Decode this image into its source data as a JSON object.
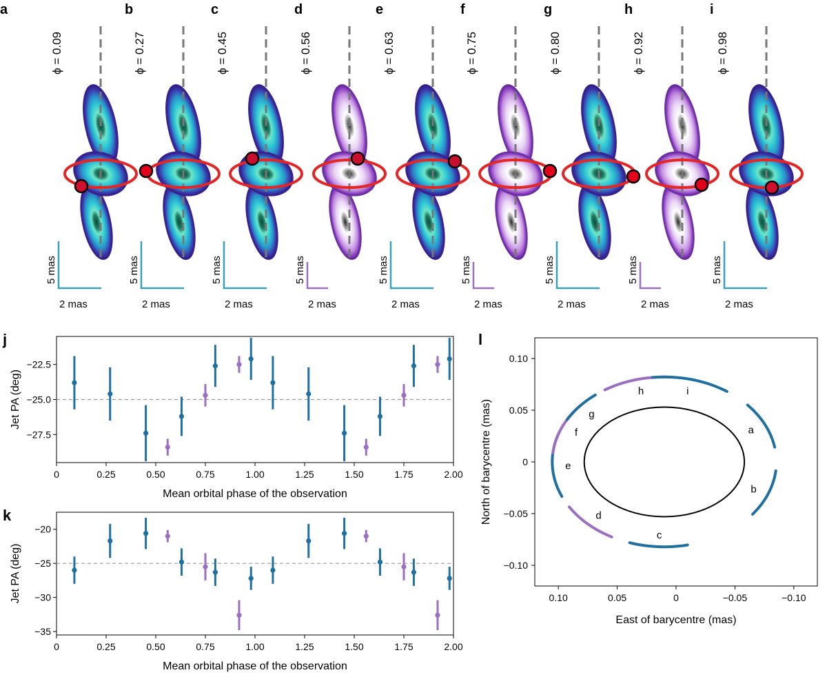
{
  "colors": {
    "blue_err": "#1f6f9f",
    "purple_err": "#9b6fc0",
    "teal_scale": "#3aa0b8",
    "purple_scale": "#9b6fc0",
    "red_ring": "#e32626",
    "jet_dash": "#777777"
  },
  "panels_top": {
    "scale_y_label": "5 mas",
    "scale_x_label": "2 mas",
    "items": [
      {
        "letter": "a",
        "phase": "ϕ = 0.09",
        "style": "blue",
        "dot": "black"
      },
      {
        "letter": "b",
        "phase": "ϕ = 0.27",
        "style": "blue",
        "dot": "red"
      },
      {
        "letter": "c",
        "phase": "ϕ = 0.45",
        "style": "blue",
        "dot": "dark"
      },
      {
        "letter": "d",
        "phase": "ϕ = 0.56",
        "style": "purple",
        "dot": "dark"
      },
      {
        "letter": "e",
        "phase": "ϕ = 0.63",
        "style": "blue",
        "dot": "dark"
      },
      {
        "letter": "f",
        "phase": "ϕ = 0.75",
        "style": "purple",
        "dot": "red"
      },
      {
        "letter": "g",
        "phase": "ϕ = 0.80",
        "style": "blue",
        "dot": "red"
      },
      {
        "letter": "h",
        "phase": "ϕ = 0.92",
        "style": "purple",
        "dot": "red"
      },
      {
        "letter": "i",
        "phase": "ϕ = 0.98",
        "style": "blue",
        "dot": "black"
      }
    ]
  },
  "chart_data": [
    {
      "panel": "j",
      "type": "scatter",
      "xlabel": "Mean orbital phase of the observation",
      "ylabel": "Jet PA (deg)",
      "xlim": [
        0,
        2.0
      ],
      "ylim": [
        -29.5,
        -20.5
      ],
      "xticks": [
        "0",
        "0.25",
        "0.50",
        "0.75",
        "1.00",
        "1.25",
        "1.50",
        "1.75",
        "2.00"
      ],
      "yticks": [
        "-22.5",
        "-25.0",
        "-27.5"
      ],
      "reference_line": -25.0,
      "points": [
        {
          "x": 0.09,
          "y": -23.8,
          "err": 1.9,
          "group": "blue"
        },
        {
          "x": 0.27,
          "y": -24.6,
          "err": 1.9,
          "group": "blue"
        },
        {
          "x": 0.45,
          "y": -27.4,
          "err": 2.0,
          "group": "blue"
        },
        {
          "x": 0.56,
          "y": -28.4,
          "err": 0.6,
          "group": "purple"
        },
        {
          "x": 0.63,
          "y": -26.2,
          "err": 1.4,
          "group": "blue"
        },
        {
          "x": 0.75,
          "y": -24.7,
          "err": 0.8,
          "group": "purple"
        },
        {
          "x": 0.8,
          "y": -22.6,
          "err": 1.5,
          "group": "blue"
        },
        {
          "x": 0.92,
          "y": -22.5,
          "err": 0.6,
          "group": "purple"
        },
        {
          "x": 0.98,
          "y": -22.1,
          "err": 1.5,
          "group": "blue"
        },
        {
          "x": 1.09,
          "y": -23.8,
          "err": 1.9,
          "group": "blue"
        },
        {
          "x": 1.27,
          "y": -24.6,
          "err": 1.9,
          "group": "blue"
        },
        {
          "x": 1.45,
          "y": -27.4,
          "err": 2.0,
          "group": "blue"
        },
        {
          "x": 1.56,
          "y": -28.4,
          "err": 0.6,
          "group": "purple"
        },
        {
          "x": 1.63,
          "y": -26.2,
          "err": 1.4,
          "group": "blue"
        },
        {
          "x": 1.75,
          "y": -24.7,
          "err": 0.8,
          "group": "purple"
        },
        {
          "x": 1.8,
          "y": -22.6,
          "err": 1.5,
          "group": "blue"
        },
        {
          "x": 1.92,
          "y": -22.5,
          "err": 0.6,
          "group": "purple"
        },
        {
          "x": 1.98,
          "y": -22.1,
          "err": 1.5,
          "group": "blue"
        }
      ]
    },
    {
      "panel": "k",
      "type": "scatter",
      "xlabel": "Mean orbital phase of the observation",
      "ylabel": "Jet PA (deg)",
      "xlim": [
        0,
        2.0
      ],
      "ylim": [
        -35.5,
        -17.5
      ],
      "xticks": [
        "0",
        "0.25",
        "0.50",
        "0.75",
        "1.00",
        "1.25",
        "1.50",
        "1.75",
        "2.00"
      ],
      "yticks": [
        "-20",
        "-25",
        "-30",
        "-35"
      ],
      "reference_line": -25.0,
      "points": [
        {
          "x": 0.09,
          "y": -26.0,
          "err": 2.0,
          "group": "blue"
        },
        {
          "x": 0.27,
          "y": -21.7,
          "err": 2.5,
          "group": "blue"
        },
        {
          "x": 0.45,
          "y": -20.6,
          "err": 2.3,
          "group": "blue"
        },
        {
          "x": 0.56,
          "y": -21.0,
          "err": 0.9,
          "group": "purple"
        },
        {
          "x": 0.63,
          "y": -24.8,
          "err": 2.0,
          "group": "blue"
        },
        {
          "x": 0.75,
          "y": -25.5,
          "err": 2.0,
          "group": "purple"
        },
        {
          "x": 0.8,
          "y": -26.3,
          "err": 2.0,
          "group": "blue"
        },
        {
          "x": 0.92,
          "y": -32.6,
          "err": 2.2,
          "group": "purple"
        },
        {
          "x": 0.98,
          "y": -27.2,
          "err": 1.7,
          "group": "blue"
        },
        {
          "x": 1.09,
          "y": -26.0,
          "err": 2.0,
          "group": "blue"
        },
        {
          "x": 1.27,
          "y": -21.7,
          "err": 2.5,
          "group": "blue"
        },
        {
          "x": 1.45,
          "y": -20.6,
          "err": 2.3,
          "group": "blue"
        },
        {
          "x": 1.56,
          "y": -21.0,
          "err": 0.9,
          "group": "purple"
        },
        {
          "x": 1.63,
          "y": -24.8,
          "err": 2.0,
          "group": "blue"
        },
        {
          "x": 1.75,
          "y": -25.5,
          "err": 2.0,
          "group": "purple"
        },
        {
          "x": 1.8,
          "y": -26.3,
          "err": 2.0,
          "group": "blue"
        },
        {
          "x": 1.92,
          "y": -32.6,
          "err": 2.2,
          "group": "purple"
        },
        {
          "x": 1.98,
          "y": -27.2,
          "err": 1.7,
          "group": "blue"
        }
      ]
    },
    {
      "panel": "l",
      "type": "line",
      "xlabel": "East of barycentre (mas)",
      "ylabel": "North of barycentre (mas)",
      "xlim": [
        0.12,
        -0.12
      ],
      "ylim": [
        -0.12,
        0.12
      ],
      "xticks": [
        "0.10",
        "0.05",
        "0",
        "-0.05",
        "-0.10"
      ],
      "yticks": [
        "0.10",
        "0.05",
        "0",
        "-0.05",
        "-0.10"
      ],
      "orbit": {
        "center_x": 0.01,
        "center_y": 0.0,
        "semi_x": 0.068,
        "semi_y": 0.053
      },
      "arcs": [
        {
          "label": "a",
          "group": "blue",
          "start_deg": 10,
          "end_deg": 42
        },
        {
          "label": "b",
          "group": "blue",
          "start_deg": -38,
          "end_deg": -6
        },
        {
          "label": "c",
          "group": "blue",
          "start_deg": -108,
          "end_deg": -78
        },
        {
          "label": "d",
          "group": "purple",
          "start_deg": -148,
          "end_deg": -118
        },
        {
          "label": "e",
          "group": "blue",
          "start_deg": -198,
          "end_deg": -156
        },
        {
          "label": "f",
          "group": "purple",
          "start_deg": -222,
          "end_deg": -186
        },
        {
          "label": "g",
          "group": "blue",
          "start_deg": -232,
          "end_deg": -210
        },
        {
          "label": "h",
          "group": "purple",
          "start_deg": 86,
          "end_deg": 122
        },
        {
          "label": "i",
          "group": "blue",
          "start_deg": 56,
          "end_deg": 96
        }
      ]
    }
  ],
  "panel_letters": {
    "j": "j",
    "k": "k",
    "l": "l"
  }
}
